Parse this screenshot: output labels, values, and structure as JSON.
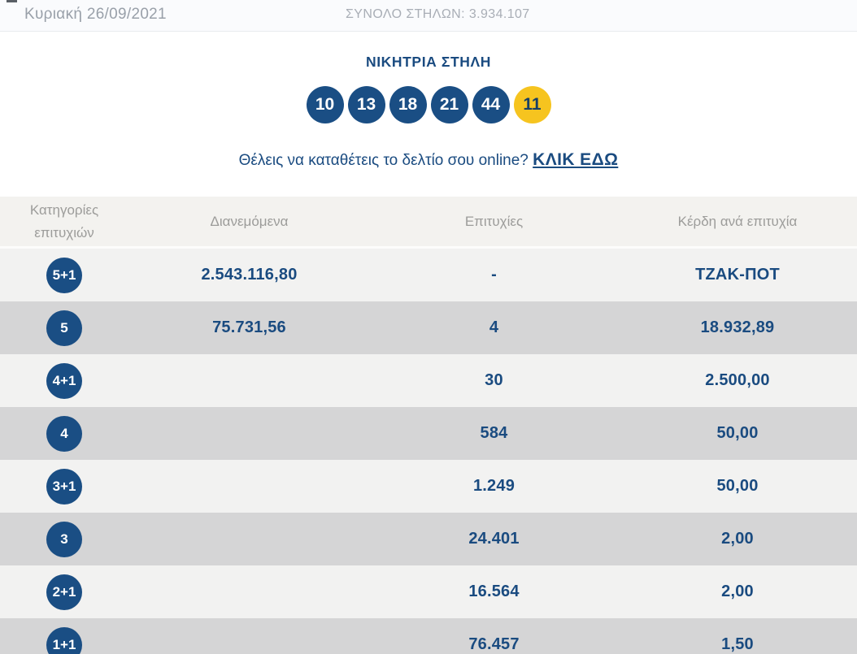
{
  "colors": {
    "navy": "#1a4b80",
    "badge_navy": "#1a4e84",
    "joker_yellow": "#f6c41f",
    "row_light": "#f2f2f1",
    "row_dark": "#d5d5d6"
  },
  "topbar": {
    "date": "Κυριακή 26/09/2021",
    "total_columns": "ΣΥΝΟΛΟ ΣΤΗΛΩΝ: 3.934.107"
  },
  "winning": {
    "title": "ΝΙΚΗΤΡΙΑ ΣΤΗΛΗ",
    "numbers": [
      "10",
      "13",
      "18",
      "21",
      "44"
    ],
    "joker": "11",
    "cta_text": "Θέλεις να καταθέτεις το δελτίο σου online?",
    "cta_link_label": "ΚΛΙΚ ΕΔΩ"
  },
  "table": {
    "headers": {
      "category_line1": "Κατηγορίες",
      "category_line2": "επιτυχιών",
      "distributed": "Διανεμόμενα",
      "winners": "Επιτυχίες",
      "prize_per_win": "Κέρδη ανά επιτυχία"
    },
    "rows": [
      {
        "category": "5+1",
        "distributed": "2.543.116,80",
        "winners": "-",
        "prize": "ΤΖΑΚ-ΠΟΤ"
      },
      {
        "category": "5",
        "distributed": "75.731,56",
        "winners": "4",
        "prize": "18.932,89"
      },
      {
        "category": "4+1",
        "distributed": "",
        "winners": "30",
        "prize": "2.500,00"
      },
      {
        "category": "4",
        "distributed": "",
        "winners": "584",
        "prize": "50,00"
      },
      {
        "category": "3+1",
        "distributed": "",
        "winners": "1.249",
        "prize": "50,00"
      },
      {
        "category": "3",
        "distributed": "",
        "winners": "24.401",
        "prize": "2,00"
      },
      {
        "category": "2+1",
        "distributed": "",
        "winners": "16.564",
        "prize": "2,00"
      },
      {
        "category": "1+1",
        "distributed": "",
        "winners": "76.457",
        "prize": "1,50"
      }
    ]
  }
}
